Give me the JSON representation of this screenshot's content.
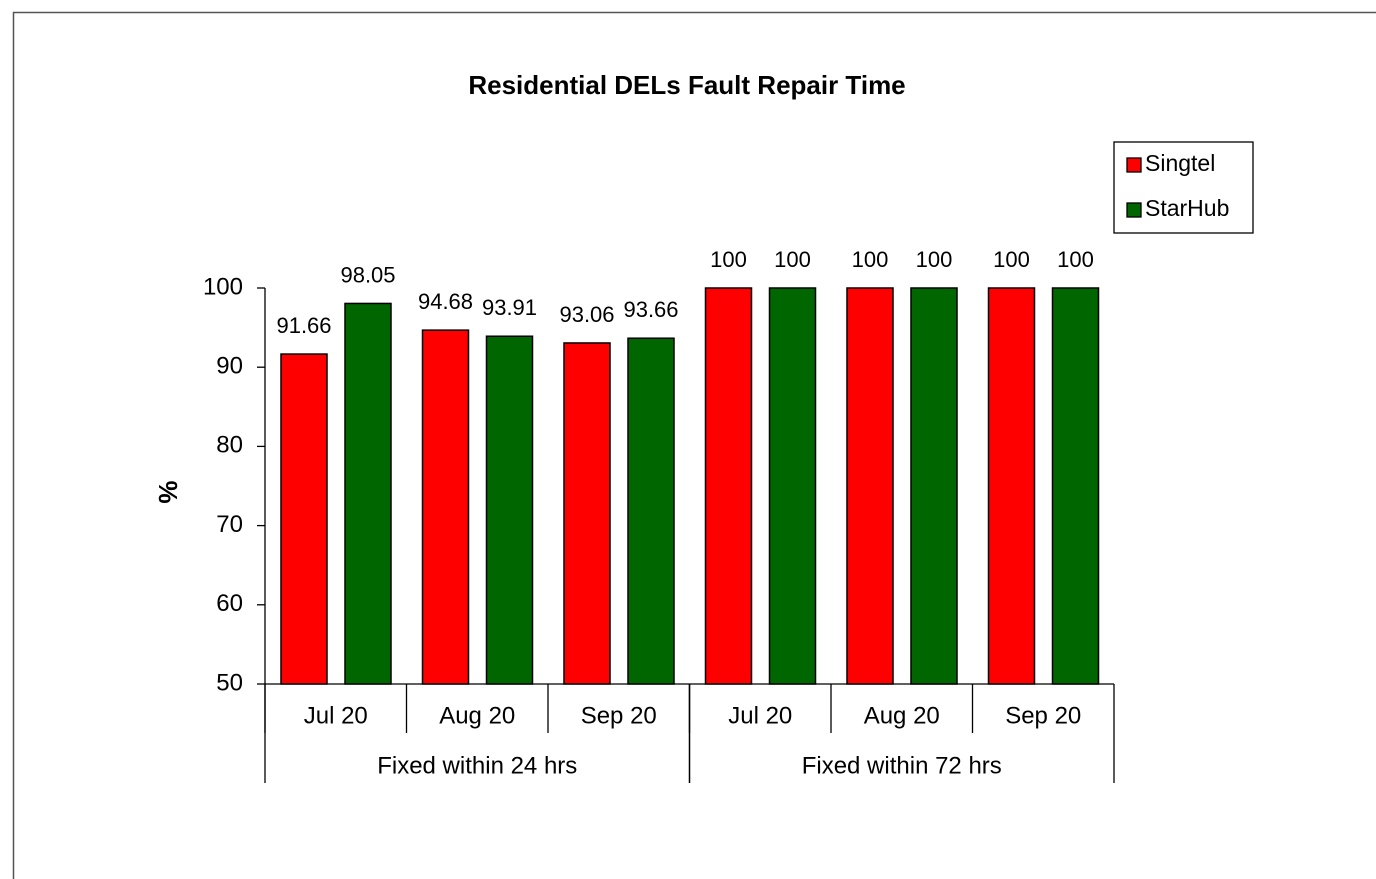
{
  "chart_data": {
    "type": "bar",
    "title": "Residential DELs Fault Repair Time",
    "y_label": "%",
    "groups": [
      {
        "name": "Fixed within 24 hrs",
        "categories": [
          "Jul 20",
          "Aug 20",
          "Sep 20"
        ]
      },
      {
        "name": "Fixed within 72 hrs",
        "categories": [
          "Jul 20",
          "Aug 20",
          "Sep 20"
        ]
      }
    ],
    "series": [
      {
        "name": "Singtel",
        "color": "#ff0000",
        "values": [
          91.66,
          94.68,
          93.06,
          100,
          100,
          100
        ]
      },
      {
        "name": "StarHub",
        "color": "#006600",
        "values": [
          98.05,
          93.91,
          93.66,
          100,
          100,
          100
        ]
      }
    ],
    "ylim": [
      50,
      100
    ],
    "yticks": [
      50,
      60,
      70,
      80,
      90,
      100
    ],
    "legend": "top-right",
    "grid": false
  }
}
